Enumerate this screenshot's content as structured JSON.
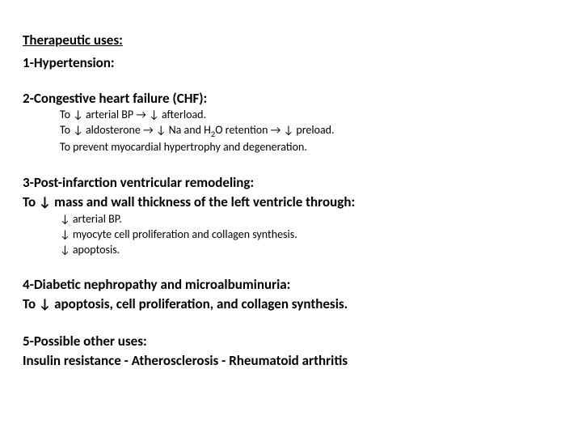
{
  "heading": "Therapeutic uses:",
  "s1": {
    "title": "1-Hypertension:"
  },
  "s2": {
    "title": "2-Congestive heart failure (CHF):",
    "l1a": "To ↓ arterial BP → ↓ afterload.",
    "l2a": "To ↓ aldosterone → ↓ Na and H",
    "l2b": "2",
    "l2c": "O retention → ↓ preload.",
    "l3a": "To prevent myocardial hypertrophy and degeneration."
  },
  "s3": {
    "title1": "3-Post-infarction ventricular remodeling:",
    "title2": "To ↓ mass and wall thickness of the left ventricle through:",
    "l1": "↓ arterial BP.",
    "l2": "↓ myocyte cell proliferation and collagen synthesis.",
    "l3": "↓ apoptosis."
  },
  "s4": {
    "title": "4-Diabetic nephropathy and microalbuminuria:",
    "line": "To ↓ apoptosis, cell proliferation, and collagen synthesis."
  },
  "s5": {
    "title": "5-Possible other uses:",
    "line": "Insulin resistance    - Atherosclerosis - Rheumatoid arthritis"
  }
}
